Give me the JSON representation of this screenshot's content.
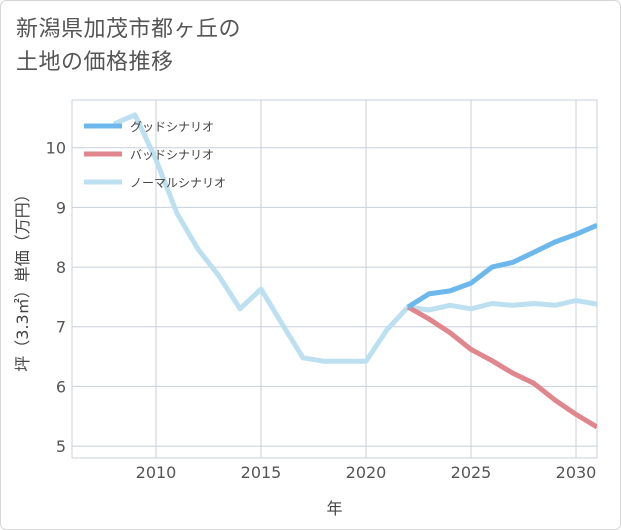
{
  "title_line1": "新潟県加茂市都ヶ丘の",
  "title_line2": "土地の価格推移",
  "chart_data": {
    "type": "line",
    "xlabel": "年",
    "ylabel": "坪（3.3㎡）単価（万円）",
    "xlim": [
      2006,
      2031
    ],
    "ylim": [
      4.8,
      10.8
    ],
    "xticks": [
      2010,
      2015,
      2020,
      2025,
      2030
    ],
    "yticks": [
      5,
      6,
      7,
      8,
      9,
      10
    ],
    "grid": true,
    "legend_position": "top-left",
    "series": [
      {
        "name": "グッドシナリオ",
        "color": "#6cb8ec",
        "x": [
          2022,
          2023,
          2024,
          2025,
          2026,
          2027,
          2028,
          2029,
          2030,
          2031
        ],
        "values": [
          7.33,
          7.55,
          7.6,
          7.73,
          8.0,
          8.08,
          8.25,
          8.42,
          8.55,
          8.7
        ]
      },
      {
        "name": "バッドシナリオ",
        "color": "#e0868d",
        "x": [
          2022,
          2023,
          2024,
          2025,
          2026,
          2027,
          2028,
          2029,
          2030,
          2031
        ],
        "values": [
          7.33,
          7.13,
          6.9,
          6.62,
          6.43,
          6.22,
          6.05,
          5.77,
          5.53,
          5.32
        ]
      },
      {
        "name": "ノーマルシナリオ",
        "color": "#bde0f0",
        "x": [
          2008,
          2009,
          2010,
          2011,
          2012,
          2013,
          2014,
          2015,
          2016,
          2017,
          2018,
          2019,
          2020,
          2021,
          2022,
          2023,
          2024,
          2025,
          2026,
          2027,
          2028,
          2029,
          2030,
          2031
        ],
        "values": [
          10.4,
          10.55,
          9.8,
          8.9,
          8.3,
          7.85,
          7.3,
          7.63,
          7.05,
          6.48,
          6.42,
          6.42,
          6.42,
          6.95,
          7.33,
          7.28,
          7.36,
          7.3,
          7.39,
          7.36,
          7.39,
          7.36,
          7.44,
          7.38
        ]
      }
    ]
  }
}
